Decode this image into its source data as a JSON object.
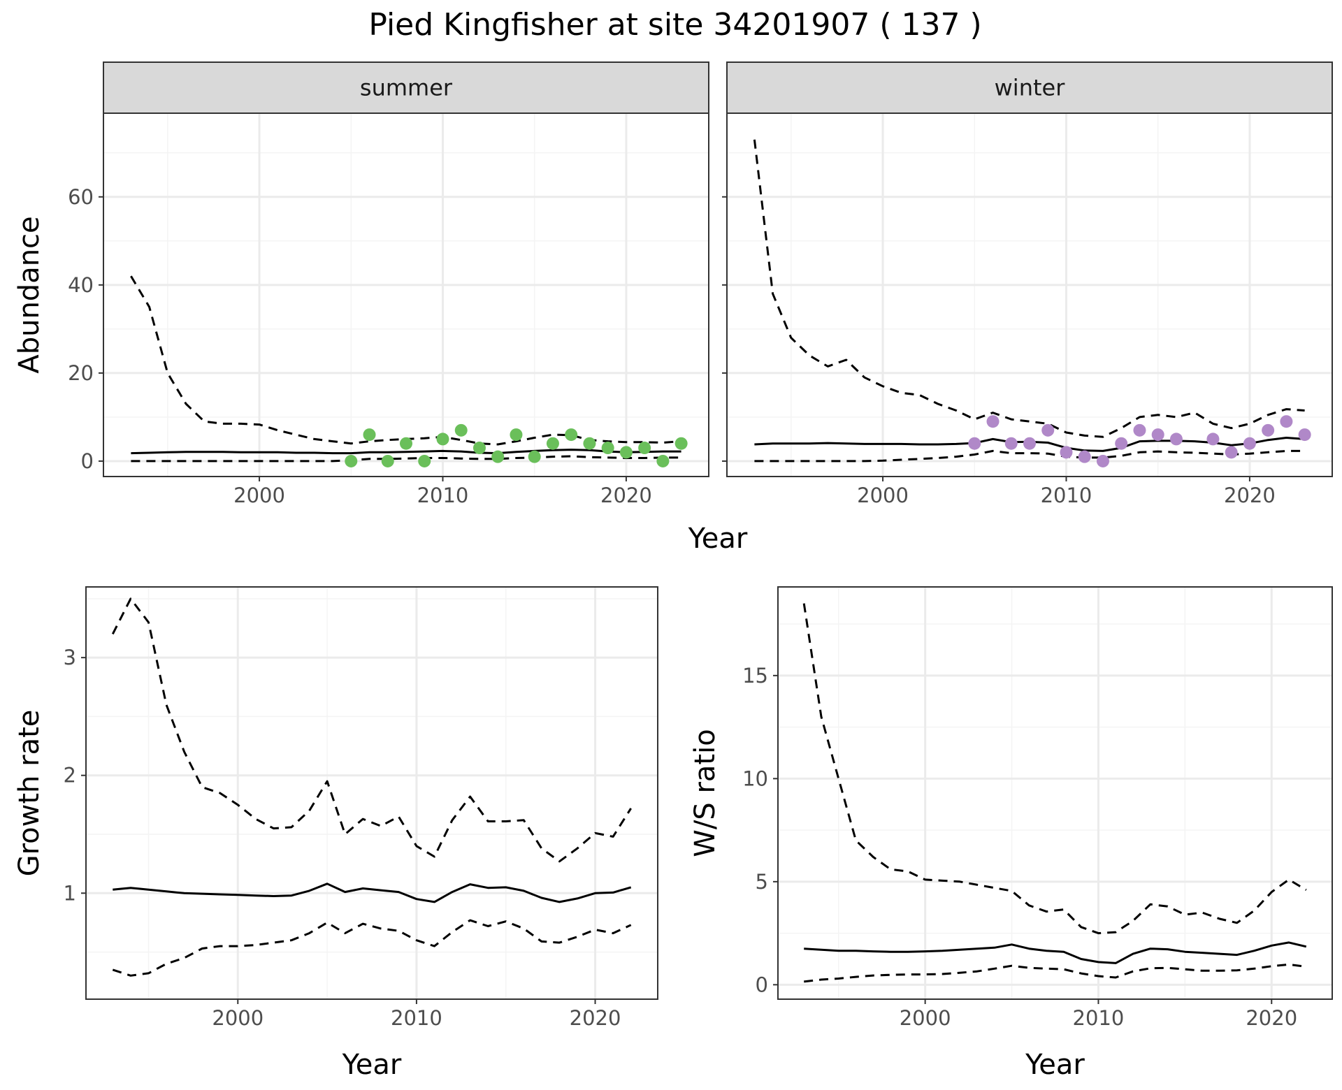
{
  "title": "Pied Kingfisher at site 34201907 ( 137 )",
  "colors": {
    "summer_points": "#6abf5a",
    "winter_points": "#b088c8",
    "lines": "#000000",
    "grid_major": "#ebebeb",
    "grid_minor": "#f4f4f4",
    "strip_fill": "#d9d9d9",
    "border": "#333333"
  },
  "chart_data": [
    {
      "type": "line",
      "panel": "summer",
      "strip_label": "summer",
      "xlabel": "Year",
      "ylabel": "Abundance",
      "xlim": [
        1991.5,
        2024.5
      ],
      "ylim": [
        -3.5,
        79
      ],
      "xticks": [
        2000,
        2010,
        2020
      ],
      "yticks": [
        0,
        20,
        40,
        60
      ],
      "grid": true,
      "x": [
        1993,
        1994,
        1995,
        1996,
        1997,
        1998,
        1999,
        2000,
        2001,
        2002,
        2003,
        2004,
        2005,
        2006,
        2007,
        2008,
        2009,
        2010,
        2011,
        2012,
        2013,
        2014,
        2015,
        2016,
        2017,
        2018,
        2019,
        2020,
        2021,
        2022,
        2023
      ],
      "series": [
        {
          "role": "mean",
          "style": "solid",
          "values": [
            1.8,
            1.9,
            2.0,
            2.1,
            2.1,
            2.1,
            2.0,
            2.0,
            2.0,
            1.9,
            1.9,
            1.8,
            1.8,
            2.0,
            2.0,
            2.1,
            2.2,
            2.3,
            2.2,
            1.9,
            1.8,
            2.1,
            2.3,
            2.5,
            2.6,
            2.5,
            2.2,
            2.0,
            2.1,
            2.2,
            2.2
          ]
        },
        {
          "role": "upper",
          "style": "dashed",
          "values": [
            42,
            35,
            20,
            13,
            9,
            8.5,
            8.5,
            8.3,
            7,
            6,
            5,
            4.5,
            4,
            4.5,
            4.8,
            5,
            5.2,
            5.5,
            4.8,
            4,
            3.8,
            4.5,
            5.3,
            6,
            5.9,
            4.8,
            4.5,
            4.3,
            4.3,
            4.2,
            4.5
          ]
        },
        {
          "role": "lower",
          "style": "dashed",
          "values": [
            0,
            0,
            0,
            0,
            0,
            0,
            0,
            0,
            0,
            0,
            0,
            0,
            0.2,
            0.5,
            0.5,
            0.6,
            0.7,
            0.7,
            0.6,
            0.5,
            0.5,
            0.7,
            0.8,
            1.0,
            1.1,
            0.9,
            0.8,
            0.7,
            0.7,
            0.8,
            0.8
          ]
        },
        {
          "role": "observed",
          "style": "points",
          "x": [
            2005,
            2006,
            2007,
            2008,
            2009,
            2010,
            2011,
            2012,
            2013,
            2014,
            2015,
            2016,
            2017,
            2018,
            2019,
            2020,
            2021,
            2022,
            2023
          ],
          "values": [
            0,
            6,
            0,
            4,
            0,
            5,
            7,
            3,
            1,
            6,
            1,
            4,
            6,
            4,
            3,
            2,
            3,
            0,
            4
          ]
        }
      ]
    },
    {
      "type": "line",
      "panel": "winter",
      "strip_label": "winter",
      "xlabel": "Year",
      "ylabel": "Abundance",
      "xlim": [
        1991.5,
        2024.5
      ],
      "ylim": [
        -3.5,
        79
      ],
      "xticks": [
        2000,
        2010,
        2020
      ],
      "yticks": [
        0,
        20,
        40,
        60
      ],
      "grid": true,
      "x": [
        1993,
        1994,
        1995,
        1996,
        1997,
        1998,
        1999,
        2000,
        2001,
        2002,
        2003,
        2004,
        2005,
        2006,
        2007,
        2008,
        2009,
        2010,
        2011,
        2012,
        2013,
        2014,
        2015,
        2016,
        2017,
        2018,
        2019,
        2020,
        2021,
        2022,
        2023
      ],
      "series": [
        {
          "role": "mean",
          "style": "solid",
          "values": [
            3.8,
            4.0,
            4.0,
            4.0,
            4.1,
            4.0,
            3.9,
            3.9,
            3.9,
            3.8,
            3.8,
            3.9,
            4.1,
            5.0,
            4.3,
            4.4,
            4.2,
            3.0,
            2.4,
            2.3,
            3.0,
            4.5,
            4.6,
            4.6,
            4.5,
            4.2,
            3.6,
            4.0,
            4.8,
            5.3,
            5.0
          ]
        },
        {
          "role": "upper",
          "style": "dashed",
          "values": [
            73,
            38,
            28,
            24,
            21.5,
            23,
            19,
            17,
            15.5,
            15,
            13,
            11.5,
            9.5,
            11,
            9.5,
            9,
            8.5,
            6.5,
            5.8,
            5.5,
            7.5,
            10,
            10.5,
            10,
            11,
            8.5,
            7.5,
            8.5,
            10.5,
            11.8,
            11.5
          ]
        },
        {
          "role": "lower",
          "style": "dashed",
          "values": [
            0,
            0,
            0,
            0,
            0,
            0,
            0,
            0.1,
            0.3,
            0.5,
            0.7,
            1.0,
            1.5,
            2.3,
            1.8,
            1.8,
            1.7,
            1.0,
            0.8,
            0.8,
            1.2,
            2.0,
            2.2,
            2.0,
            1.9,
            1.7,
            1.5,
            1.7,
            2.0,
            2.3,
            2.3
          ]
        },
        {
          "role": "observed",
          "style": "points",
          "x": [
            2005,
            2006,
            2007,
            2008,
            2009,
            2010,
            2011,
            2012,
            2013,
            2014,
            2015,
            2016,
            2018,
            2019,
            2020,
            2021,
            2022,
            2023
          ],
          "values": [
            4,
            9,
            4,
            4,
            7,
            2,
            1,
            0,
            4,
            7,
            6,
            5,
            5,
            2,
            4,
            7,
            9,
            6
          ]
        }
      ]
    },
    {
      "type": "line",
      "panel": "growth",
      "xlabel": "Year",
      "ylabel": "Growth rate",
      "xlim": [
        1991.5,
        2023.5
      ],
      "ylim": [
        0.1,
        3.6
      ],
      "xticks": [
        2000,
        2010,
        2020
      ],
      "yticks": [
        1,
        2,
        3
      ],
      "grid": true,
      "x": [
        1993,
        1994,
        1995,
        1996,
        1997,
        1998,
        1999,
        2000,
        2001,
        2002,
        2003,
        2004,
        2005,
        2006,
        2007,
        2008,
        2009,
        2010,
        2011,
        2012,
        2013,
        2014,
        2015,
        2016,
        2017,
        2018,
        2019,
        2020,
        2021,
        2022
      ],
      "series": [
        {
          "role": "mean",
          "style": "solid",
          "values": [
            1.03,
            1.045,
            1.03,
            1.015,
            1.0,
            0.995,
            0.99,
            0.985,
            0.98,
            0.975,
            0.98,
            1.02,
            1.08,
            1.01,
            1.04,
            1.025,
            1.01,
            0.95,
            0.925,
            1.01,
            1.075,
            1.045,
            1.05,
            1.02,
            0.96,
            0.925,
            0.955,
            1.0,
            1.005,
            1.05
          ]
        },
        {
          "role": "upper",
          "style": "dashed",
          "values": [
            3.2,
            3.5,
            3.3,
            2.6,
            2.2,
            1.9,
            1.85,
            1.75,
            1.63,
            1.55,
            1.56,
            1.7,
            1.95,
            1.5,
            1.63,
            1.57,
            1.65,
            1.4,
            1.31,
            1.62,
            1.82,
            1.61,
            1.61,
            1.62,
            1.38,
            1.27,
            1.38,
            1.51,
            1.48,
            1.72
          ]
        },
        {
          "role": "lower",
          "style": "dashed",
          "values": [
            0.35,
            0.3,
            0.32,
            0.4,
            0.45,
            0.53,
            0.55,
            0.55,
            0.56,
            0.58,
            0.6,
            0.66,
            0.75,
            0.66,
            0.74,
            0.7,
            0.68,
            0.6,
            0.55,
            0.67,
            0.77,
            0.72,
            0.76,
            0.7,
            0.59,
            0.58,
            0.63,
            0.69,
            0.66,
            0.73
          ]
        }
      ]
    },
    {
      "type": "line",
      "panel": "ws_ratio",
      "xlabel": "Year",
      "ylabel": "W/S ratio",
      "xlim": [
        1991.5,
        2023.5
      ],
      "ylim": [
        -0.7,
        19.3
      ],
      "xticks": [
        2000,
        2010,
        2020
      ],
      "yticks": [
        0,
        5,
        10,
        15
      ],
      "grid": true,
      "x": [
        1993,
        1994,
        1995,
        1996,
        1997,
        1998,
        1999,
        2000,
        2001,
        2002,
        2003,
        2004,
        2005,
        2006,
        2007,
        2008,
        2009,
        2010,
        2011,
        2012,
        2013,
        2014,
        2015,
        2016,
        2017,
        2018,
        2019,
        2020,
        2021,
        2022
      ],
      "series": [
        {
          "role": "mean",
          "style": "solid",
          "values": [
            1.75,
            1.7,
            1.65,
            1.65,
            1.62,
            1.6,
            1.6,
            1.62,
            1.65,
            1.7,
            1.75,
            1.8,
            1.95,
            1.75,
            1.65,
            1.6,
            1.25,
            1.1,
            1.05,
            1.5,
            1.75,
            1.72,
            1.6,
            1.55,
            1.5,
            1.45,
            1.65,
            1.9,
            2.05,
            1.85
          ]
        },
        {
          "role": "upper",
          "style": "dashed",
          "values": [
            18.5,
            13,
            10,
            7,
            6.2,
            5.6,
            5.5,
            5.1,
            5.05,
            5.0,
            4.85,
            4.7,
            4.55,
            3.85,
            3.55,
            3.65,
            2.8,
            2.5,
            2.55,
            3.1,
            3.9,
            3.8,
            3.4,
            3.5,
            3.2,
            3.0,
            3.6,
            4.5,
            5.1,
            4.6
          ]
        },
        {
          "role": "lower",
          "style": "dashed",
          "values": [
            0.15,
            0.25,
            0.3,
            0.38,
            0.45,
            0.48,
            0.5,
            0.5,
            0.52,
            0.58,
            0.65,
            0.78,
            0.92,
            0.82,
            0.78,
            0.75,
            0.55,
            0.42,
            0.35,
            0.65,
            0.8,
            0.82,
            0.75,
            0.68,
            0.68,
            0.7,
            0.78,
            0.9,
            0.98,
            0.88
          ]
        }
      ]
    }
  ]
}
